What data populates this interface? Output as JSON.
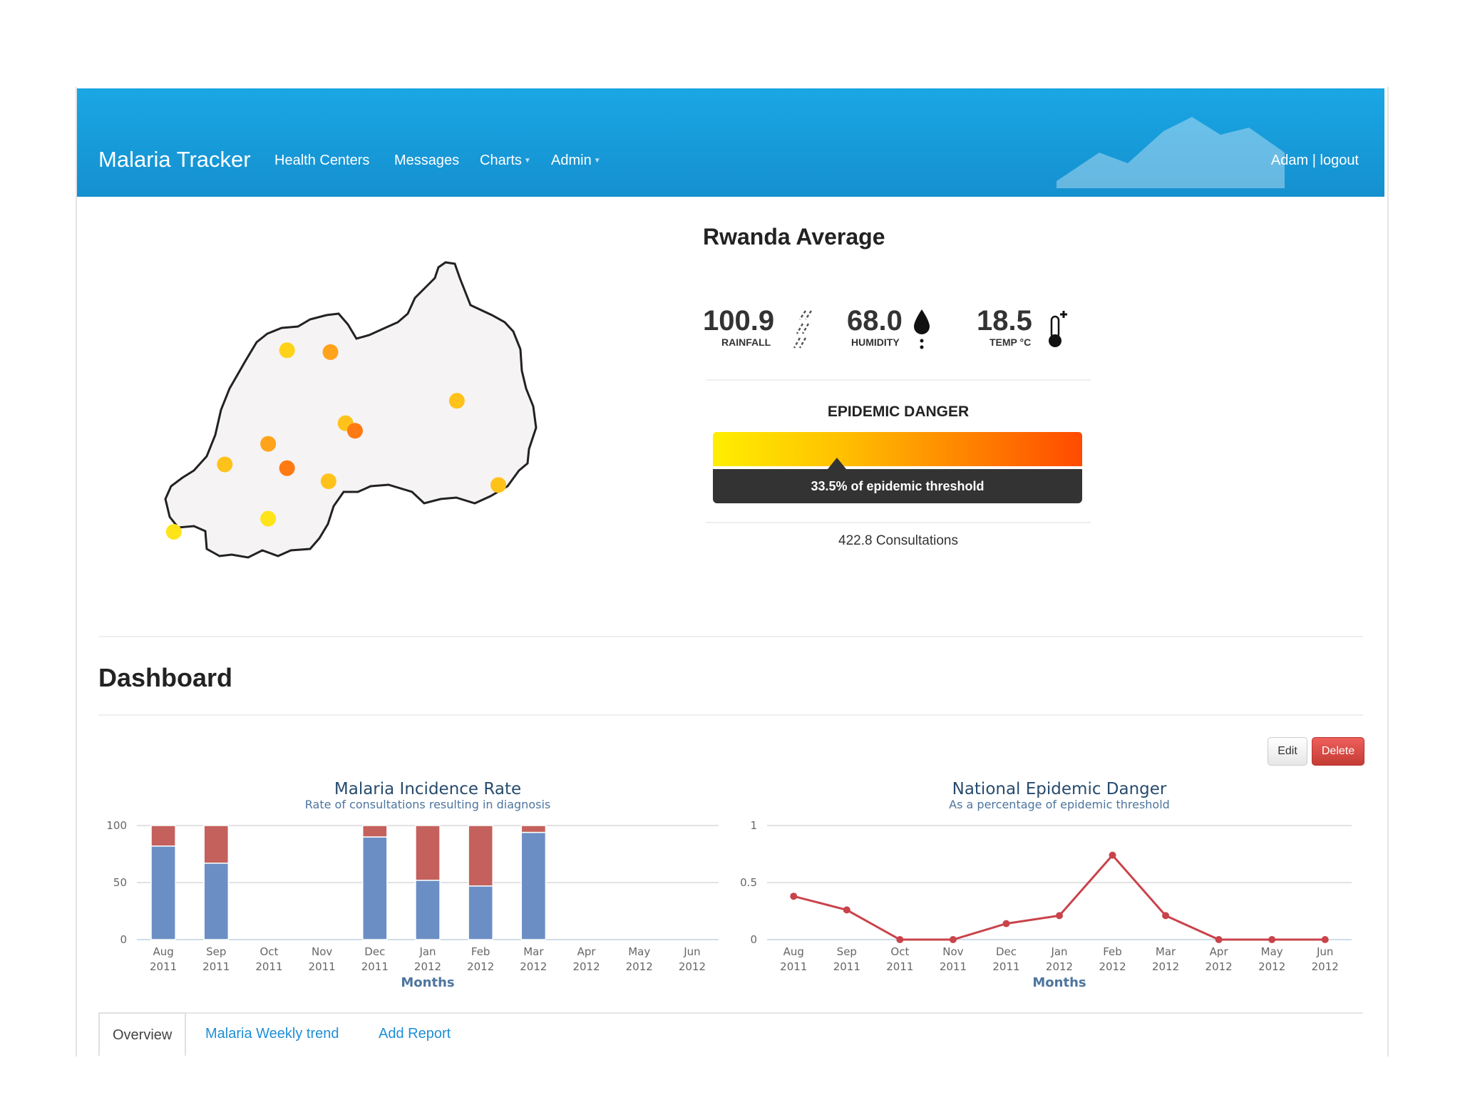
{
  "navbar": {
    "brand": "Malaria Tracker",
    "items": [
      {
        "label": "Health Centers"
      },
      {
        "label": "Messages"
      },
      {
        "label": "Charts",
        "dropdown": true
      },
      {
        "label": "Admin",
        "dropdown": true
      }
    ],
    "user": "Adam",
    "separator": "|",
    "logout": "logout",
    "color": "#1a9fe0"
  },
  "summary": {
    "title": "Rwanda Average",
    "metrics": [
      {
        "value": "100.9",
        "label": "RAINFALL",
        "icon": "rain-icon"
      },
      {
        "value": "68.0",
        "label": "HUMIDITY",
        "icon": "droplet-icon"
      },
      {
        "value": "18.5",
        "label": "TEMP °C",
        "icon": "thermometer-icon"
      }
    ],
    "danger_title": "EPIDEMIC DANGER",
    "danger_text": "33.5% of epidemic threshold",
    "danger_fraction": 0.335,
    "consultations": "422.8 Consultations"
  },
  "map": {
    "region": "Rwanda",
    "markers": [
      {
        "lon": 29.55,
        "lat": -1.55,
        "color": "#ffd21a"
      },
      {
        "lon": 29.78,
        "lat": -1.56,
        "color": "#ffa31a"
      },
      {
        "lon": 30.45,
        "lat": -1.82,
        "color": "#ffc21a"
      },
      {
        "lon": 29.86,
        "lat": -1.94,
        "color": "#ffc21a"
      },
      {
        "lon": 29.91,
        "lat": -1.98,
        "color": "#ff7a12"
      },
      {
        "lon": 29.45,
        "lat": -2.05,
        "color": "#ffa31a"
      },
      {
        "lon": 29.22,
        "lat": -2.16,
        "color": "#ffc21a"
      },
      {
        "lon": 29.55,
        "lat": -2.18,
        "color": "#ff7a12"
      },
      {
        "lon": 29.77,
        "lat": -2.25,
        "color": "#ffc21a"
      },
      {
        "lon": 30.67,
        "lat": -2.27,
        "color": "#ffc21a"
      },
      {
        "lon": 29.45,
        "lat": -2.45,
        "color": "#ffe41a"
      },
      {
        "lon": 28.95,
        "lat": -2.52,
        "color": "#ffe41a"
      }
    ]
  },
  "dashboard": {
    "title": "Dashboard",
    "edit_label": "Edit",
    "delete_label": "Delete"
  },
  "chart_data": [
    {
      "type": "bar",
      "title": "Malaria Incidence Rate",
      "subtitle": "Rate of consultations resulting in diagnosis",
      "xlabel": "Months",
      "ylabel": "",
      "ylim": [
        0,
        100
      ],
      "yticks": [
        "0",
        "50",
        "100"
      ],
      "stacked": true,
      "categories": [
        [
          "Aug",
          "2011"
        ],
        [
          "Sep",
          "2011"
        ],
        [
          "Oct",
          "2011"
        ],
        [
          "Nov",
          "2011"
        ],
        [
          "Dec",
          "2011"
        ],
        [
          "Jan",
          "2012"
        ],
        [
          "Feb",
          "2012"
        ],
        [
          "Mar",
          "2012"
        ],
        [
          "Apr",
          "2012"
        ],
        [
          "May",
          "2012"
        ],
        [
          "Jun",
          "2012"
        ]
      ],
      "series": [
        {
          "color": "#6b8fc4",
          "values": [
            82,
            67,
            0,
            0,
            90,
            52,
            47,
            94,
            0,
            0,
            0
          ]
        },
        {
          "color": "#c4615d",
          "values": [
            18,
            33,
            0,
            0,
            10,
            48,
            53,
            6,
            0,
            0,
            0
          ]
        }
      ],
      "grid": true
    },
    {
      "type": "line",
      "title": "National Epidemic Danger",
      "subtitle": "As a percentage of epidemic threshold",
      "xlabel": "Months",
      "ylabel": "",
      "ylim": [
        0,
        1
      ],
      "yticks": [
        "0",
        "0.5",
        "1"
      ],
      "categories": [
        [
          "Aug",
          "2011"
        ],
        [
          "Sep",
          "2011"
        ],
        [
          "Oct",
          "2011"
        ],
        [
          "Nov",
          "2011"
        ],
        [
          "Dec",
          "2011"
        ],
        [
          "Jan",
          "2012"
        ],
        [
          "Feb",
          "2012"
        ],
        [
          "Mar",
          "2012"
        ],
        [
          "Apr",
          "2012"
        ],
        [
          "May",
          "2012"
        ],
        [
          "Jun",
          "2012"
        ]
      ],
      "series": [
        {
          "color": "#c9434b",
          "values": [
            0.38,
            0.26,
            0.0,
            0.0,
            0.14,
            0.21,
            0.74,
            0.21,
            0.0,
            0.0,
            0.0
          ]
        }
      ],
      "grid": true
    }
  ],
  "tabs": [
    {
      "label": "Overview",
      "active": true
    },
    {
      "label": "Malaria Weekly trend",
      "active": false
    },
    {
      "label": "Add Report",
      "active": false
    }
  ]
}
